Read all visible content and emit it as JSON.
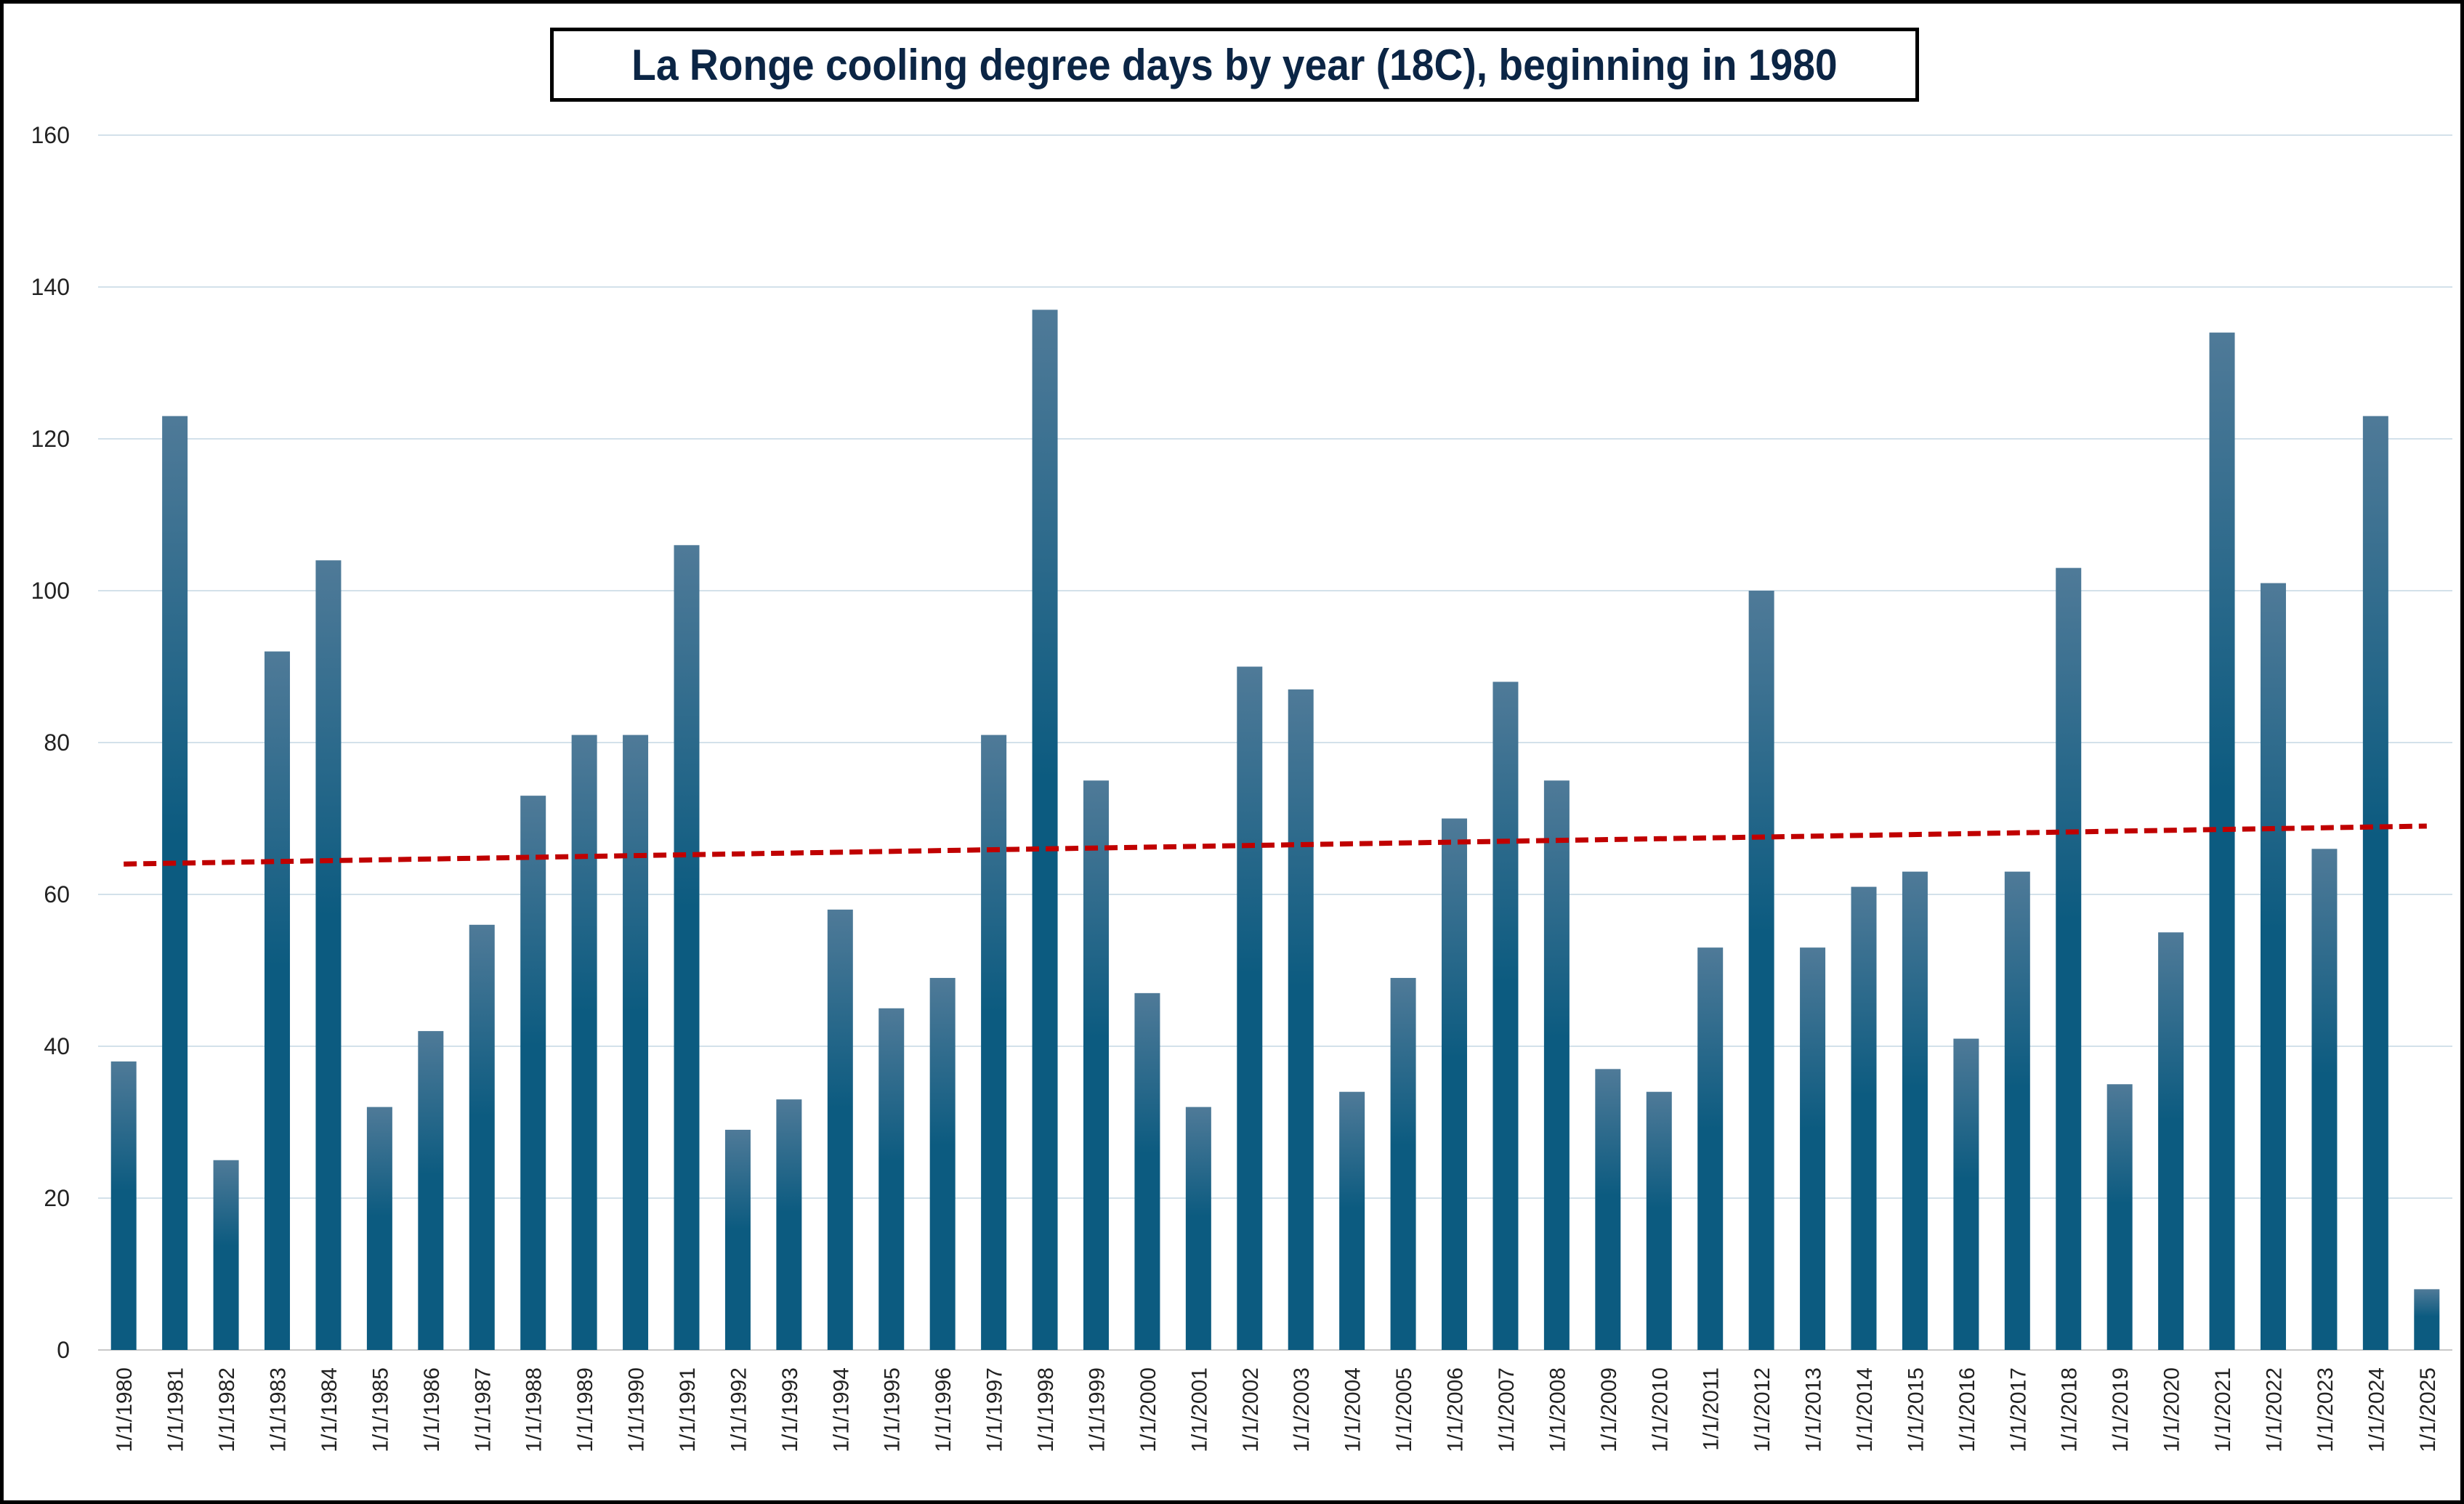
{
  "chart_data": {
    "type": "bar",
    "title": "La Ronge cooling degree days by year (18C), beginning in 1980",
    "xlabel": "",
    "ylabel": "",
    "ylim": [
      0,
      160
    ],
    "yticks": [
      0,
      20,
      40,
      60,
      80,
      100,
      120,
      140,
      160
    ],
    "grid": true,
    "legend": "none",
    "categories": [
      "1/1/1980",
      "1/1/1981",
      "1/1/1982",
      "1/1/1983",
      "1/1/1984",
      "1/1/1985",
      "1/1/1986",
      "1/1/1987",
      "1/1/1988",
      "1/1/1989",
      "1/1/1990",
      "1/1/1991",
      "1/1/1992",
      "1/1/1993",
      "1/1/1994",
      "1/1/1995",
      "1/1/1996",
      "1/1/1997",
      "1/1/1998",
      "1/1/1999",
      "1/1/2000",
      "1/1/2001",
      "1/1/2002",
      "1/1/2003",
      "1/1/2004",
      "1/1/2005",
      "1/1/2006",
      "1/1/2007",
      "1/1/2008",
      "1/1/2009",
      "1/1/2010",
      "1/1/2011",
      "1/1/2012",
      "1/1/2013",
      "1/1/2014",
      "1/1/2015",
      "1/1/2016",
      "1/1/2017",
      "1/1/2018",
      "1/1/2019",
      "1/1/2020",
      "1/1/2021",
      "1/1/2022",
      "1/1/2023",
      "1/1/2024",
      "1/1/2025"
    ],
    "values": [
      38,
      123,
      25,
      92,
      104,
      32,
      42,
      56,
      73,
      81,
      81,
      106,
      29,
      33,
      58,
      45,
      49,
      81,
      137,
      75,
      47,
      32,
      90,
      87,
      34,
      49,
      70,
      88,
      75,
      37,
      34,
      53,
      100,
      53,
      61,
      63,
      41,
      63,
      103,
      35,
      55,
      134,
      101,
      66,
      123,
      8
    ],
    "trendline": {
      "type": "linear",
      "start_value": 64,
      "end_value": 69
    },
    "colors": {
      "bar_top": "#4f7a98",
      "bar_bottom": "#0c5b80",
      "trendline": "#c00000",
      "grid": "#d3e1ea",
      "title_text": "#0b2545"
    }
  }
}
